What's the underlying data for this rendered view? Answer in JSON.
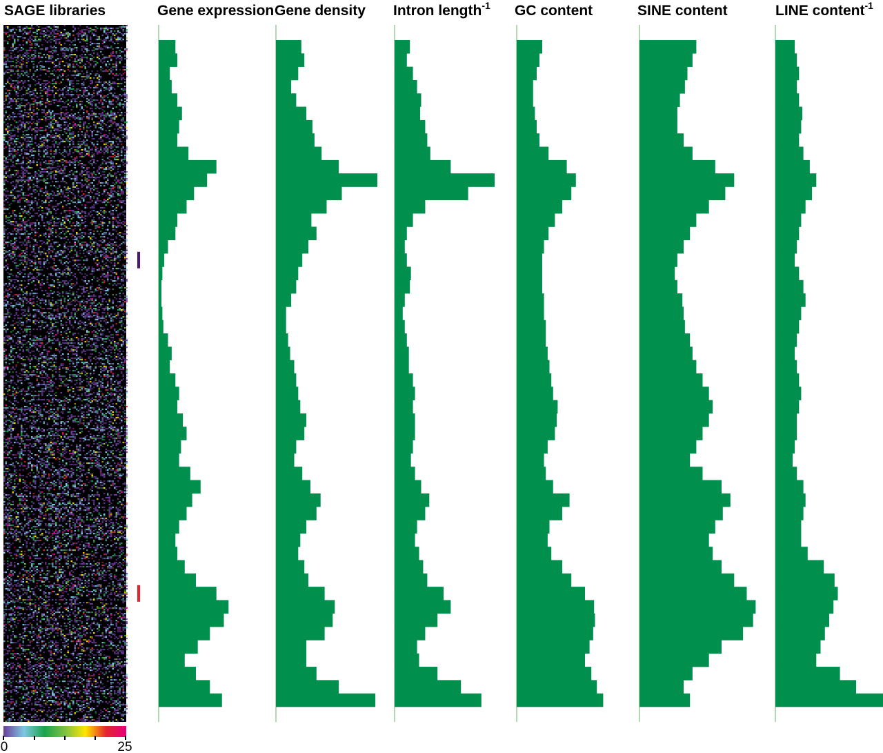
{
  "colors": {
    "track_fill": "#008f4c",
    "baseline": "#7fbf7f",
    "heatmap_bg": "#000000",
    "marker_upper": "#4b1a6e",
    "marker_lower": "#e4262c"
  },
  "chart_data": {
    "type": "area",
    "orientation": "vertical",
    "heatmap": {
      "title": "SAGE libraries",
      "colorbar": {
        "min_label": "0",
        "max_label": "25",
        "colors": [
          "#6a3d9a",
          "#7ec8e3",
          "#1aa34a",
          "#7cc242",
          "#ffe600",
          "#e4262c",
          "#e6007e"
        ]
      }
    },
    "markers": [
      {
        "color": "#4b1a6e",
        "position": 0.33
      },
      {
        "color": "#e4262c",
        "position": 0.83
      }
    ],
    "tracks": [
      {
        "name": "Gene expression",
        "sup": "",
        "values": [
          0.18,
          0.2,
          0.12,
          0.14,
          0.2,
          0.25,
          0.22,
          0.2,
          0.32,
          0.62,
          0.52,
          0.38,
          0.3,
          0.2,
          0.18,
          0.1,
          0.06,
          0.04,
          0.03,
          0.03,
          0.04,
          0.05,
          0.1,
          0.14,
          0.12,
          0.18,
          0.22,
          0.2,
          0.26,
          0.3,
          0.24,
          0.22,
          0.34,
          0.45,
          0.36,
          0.3,
          0.22,
          0.18,
          0.2,
          0.28,
          0.4,
          0.62,
          0.75,
          0.7,
          0.55,
          0.42,
          0.28,
          0.4,
          0.55,
          0.68
        ]
      },
      {
        "name": "Gene density",
        "sup": "",
        "values": [
          0.25,
          0.28,
          0.22,
          0.15,
          0.2,
          0.3,
          0.36,
          0.38,
          0.45,
          0.62,
          1.0,
          0.65,
          0.5,
          0.35,
          0.4,
          0.32,
          0.26,
          0.22,
          0.2,
          0.15,
          0.1,
          0.1,
          0.12,
          0.14,
          0.18,
          0.2,
          0.22,
          0.24,
          0.3,
          0.28,
          0.2,
          0.18,
          0.26,
          0.34,
          0.44,
          0.4,
          0.3,
          0.24,
          0.22,
          0.28,
          0.32,
          0.48,
          0.58,
          0.56,
          0.48,
          0.3,
          0.3,
          0.4,
          0.62,
          0.98
        ]
      },
      {
        "name": "Intron length",
        "sup": "-1",
        "values": [
          0.15,
          0.12,
          0.18,
          0.22,
          0.26,
          0.25,
          0.3,
          0.32,
          0.35,
          0.55,
          0.98,
          0.72,
          0.3,
          0.18,
          0.12,
          0.1,
          0.12,
          0.16,
          0.15,
          0.1,
          0.08,
          0.1,
          0.12,
          0.14,
          0.14,
          0.18,
          0.2,
          0.18,
          0.2,
          0.2,
          0.18,
          0.16,
          0.2,
          0.26,
          0.34,
          0.3,
          0.22,
          0.2,
          0.24,
          0.28,
          0.32,
          0.48,
          0.55,
          0.42,
          0.3,
          0.22,
          0.24,
          0.42,
          0.65,
          0.85
        ]
      },
      {
        "name": "GC content",
        "sup": "",
        "values": [
          0.28,
          0.25,
          0.22,
          0.18,
          0.18,
          0.2,
          0.22,
          0.25,
          0.35,
          0.55,
          0.65,
          0.6,
          0.5,
          0.42,
          0.35,
          0.3,
          0.28,
          0.28,
          0.28,
          0.3,
          0.3,
          0.32,
          0.32,
          0.34,
          0.36,
          0.38,
          0.4,
          0.45,
          0.44,
          0.42,
          0.34,
          0.3,
          0.32,
          0.4,
          0.58,
          0.5,
          0.36,
          0.34,
          0.38,
          0.5,
          0.6,
          0.75,
          0.85,
          0.86,
          0.84,
          0.8,
          0.75,
          0.82,
          0.88,
          0.95
        ]
      },
      {
        "name": "SINE content",
        "sup": "",
        "values": [
          0.45,
          0.42,
          0.38,
          0.36,
          0.32,
          0.3,
          0.3,
          0.35,
          0.42,
          0.6,
          0.75,
          0.68,
          0.55,
          0.45,
          0.4,
          0.35,
          0.3,
          0.28,
          0.3,
          0.34,
          0.35,
          0.36,
          0.4,
          0.42,
          0.45,
          0.5,
          0.55,
          0.58,
          0.55,
          0.5,
          0.45,
          0.4,
          0.5,
          0.65,
          0.72,
          0.66,
          0.6,
          0.55,
          0.58,
          0.65,
          0.75,
          0.85,
          0.92,
          0.9,
          0.82,
          0.65,
          0.55,
          0.42,
          0.35,
          0.4
        ]
      },
      {
        "name": "LINE content",
        "sup": "-1",
        "values": [
          0.18,
          0.2,
          0.22,
          0.2,
          0.22,
          0.25,
          0.24,
          0.22,
          0.26,
          0.32,
          0.38,
          0.34,
          0.28,
          0.24,
          0.22,
          0.2,
          0.18,
          0.22,
          0.26,
          0.28,
          0.24,
          0.22,
          0.2,
          0.18,
          0.2,
          0.22,
          0.24,
          0.22,
          0.2,
          0.2,
          0.18,
          0.16,
          0.2,
          0.26,
          0.28,
          0.26,
          0.24,
          0.24,
          0.3,
          0.45,
          0.55,
          0.58,
          0.54,
          0.5,
          0.46,
          0.42,
          0.38,
          0.6,
          0.75,
          1.0
        ]
      }
    ]
  }
}
